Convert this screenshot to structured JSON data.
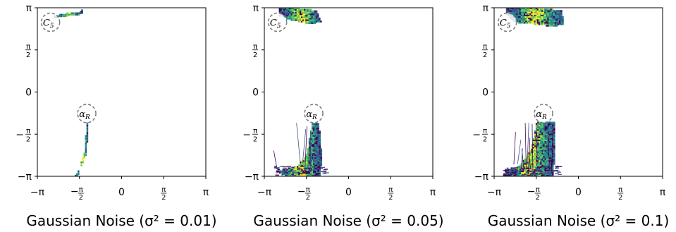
{
  "chart_data": [
    {
      "type": "heatmap",
      "xlabel": "Gaussian Noise (σ² = 0.01)",
      "xlim": [
        -3.1416,
        3.1416
      ],
      "ylim": [
        -3.1416,
        3.1416
      ],
      "xticks": [
        "−π",
        "−π/2",
        "0",
        "π/2",
        "π"
      ],
      "yticks": [
        "−π",
        "−π/2",
        "0",
        "π/2",
        "π"
      ],
      "xtick_values": [
        -3.1416,
        -1.5708,
        0,
        1.5708,
        3.1416
      ],
      "ytick_values": [
        -3.1416,
        -1.5708,
        0,
        1.5708,
        3.1416
      ],
      "annotations": [
        {
          "label": "C5",
          "x": -2.65,
          "y": 2.6
        },
        {
          "label": "αR",
          "x": -1.3,
          "y": -0.8
        }
      ],
      "regions": [
        {
          "name": "C5 basin",
          "polygon": [
            [
              -2.55,
              2.85
            ],
            [
              -2.0,
              2.95
            ],
            [
              -1.55,
              3.0
            ],
            [
              -1.45,
              3.14
            ],
            [
              -1.48,
              2.9
            ],
            [
              -2.1,
              2.82
            ],
            [
              -2.55,
              2.75
            ]
          ]
        },
        {
          "name": "alpha-R basin",
          "polygon": [
            [
              -1.3,
              -1.1
            ],
            [
              -1.25,
              -1.1
            ],
            [
              -1.3,
              -2.3
            ],
            [
              -1.55,
              -2.85
            ],
            [
              -1.75,
              -3.14
            ],
            [
              -1.6,
              -3.1
            ],
            [
              -1.5,
              -2.6
            ],
            [
              -1.38,
              -2.2
            ]
          ]
        }
      ],
      "grid": false
    },
    {
      "type": "heatmap",
      "xlabel": "Gaussian Noise (σ² = 0.05)",
      "xlim": [
        -3.1416,
        3.1416
      ],
      "ylim": [
        -3.1416,
        3.1416
      ],
      "xticks": [
        "−π",
        "−π/2",
        "0",
        "π/2",
        "π"
      ],
      "yticks": [
        "−π",
        "−π/2",
        "0",
        "π/2",
        "π"
      ],
      "xtick_values": [
        -3.1416,
        -1.5708,
        0,
        1.5708,
        3.1416
      ],
      "ytick_values": [
        -3.1416,
        -1.5708,
        0,
        1.5708,
        3.1416
      ],
      "annotations": [
        {
          "label": "C5",
          "x": -2.65,
          "y": 2.6
        },
        {
          "label": "αR",
          "x": -1.3,
          "y": -0.8
        }
      ],
      "regions": [
        {
          "name": "C5 basin",
          "polygon": [
            [
              -2.6,
              3.14
            ],
            [
              -1.9,
              3.14
            ],
            [
              -1.2,
              3.05
            ],
            [
              -1.0,
              2.6
            ],
            [
              -1.5,
              2.55
            ],
            [
              -2.2,
              2.7
            ],
            [
              -2.6,
              2.85
            ]
          ]
        },
        {
          "name": "alpha-R basin",
          "polygon": [
            [
              -1.35,
              -1.15
            ],
            [
              -1.1,
              -1.15
            ],
            [
              -1.0,
              -2.4
            ],
            [
              -1.05,
              -3.14
            ],
            [
              -2.3,
              -3.14
            ],
            [
              -2.7,
              -2.95
            ],
            [
              -1.9,
              -2.75
            ],
            [
              -1.55,
              -2.3
            ],
            [
              -1.45,
              -1.6
            ]
          ]
        }
      ],
      "grid": false
    },
    {
      "type": "heatmap",
      "xlabel": "Gaussian Noise (σ² = 0.1)",
      "xlim": [
        -3.1416,
        3.1416
      ],
      "ylim": [
        -3.1416,
        3.1416
      ],
      "xticks": [
        "−π",
        "−π/2",
        "0",
        "π/2",
        "π"
      ],
      "yticks": [
        "−π",
        "−π/2",
        "0",
        "π/2",
        "π"
      ],
      "xtick_values": [
        -3.1416,
        -1.5708,
        0,
        1.5708,
        3.1416
      ],
      "ytick_values": [
        -3.1416,
        -1.5708,
        0,
        1.5708,
        3.1416
      ],
      "annotations": [
        {
          "label": "C5",
          "x": -2.65,
          "y": 2.6
        },
        {
          "label": "αR",
          "x": -1.3,
          "y": -0.8
        }
      ],
      "regions": [
        {
          "name": "C5 basin",
          "polygon": [
            [
              -2.7,
              3.14
            ],
            [
              -1.6,
              3.14
            ],
            [
              -0.6,
              3.05
            ],
            [
              -0.55,
              2.5
            ],
            [
              -1.0,
              2.45
            ],
            [
              -1.8,
              2.55
            ],
            [
              -2.4,
              2.6
            ],
            [
              -2.7,
              2.9
            ]
          ]
        },
        {
          "name": "alpha-R basin",
          "polygon": [
            [
              -1.55,
              -1.1
            ],
            [
              -0.9,
              -1.1
            ],
            [
              -0.85,
              -2.2
            ],
            [
              -0.95,
              -3.14
            ],
            [
              -2.8,
              -3.14
            ],
            [
              -2.75,
              -2.9
            ],
            [
              -2.2,
              -2.75
            ],
            [
              -1.8,
              -2.2
            ],
            [
              -1.65,
              -1.6
            ]
          ]
        }
      ],
      "grid": false
    }
  ],
  "colors": {
    "palette": [
      "#440154",
      "#3b528b",
      "#21918c",
      "#5ec962",
      "#fde725"
    ],
    "annotation_circle": "#7f7f7f",
    "axis": "#000000"
  }
}
